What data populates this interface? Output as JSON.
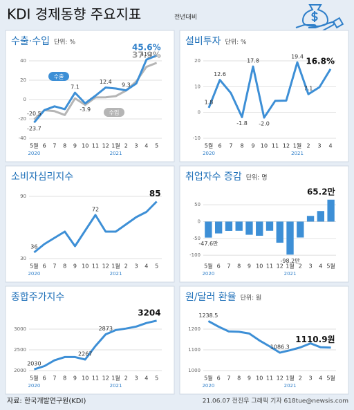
{
  "header": {
    "title": "KDI 경제동향 주요지표",
    "subtitle": "전년대비"
  },
  "chart_data": [
    {
      "type": "line",
      "title": "수출·수입",
      "unit": "단위: %",
      "categories": [
        "5월",
        "6",
        "7",
        "8",
        "9",
        "10",
        "11",
        "12",
        "1월",
        "2",
        "3",
        "4",
        "5"
      ],
      "years": [
        "2020",
        null,
        null,
        null,
        null,
        null,
        null,
        null,
        "2021",
        null,
        null,
        null,
        null
      ],
      "ylim": [
        -40,
        40
      ],
      "yticks": [
        -40,
        -20,
        0,
        20,
        40
      ],
      "grid": true,
      "series": [
        {
          "name": "수출",
          "color": "#3d8fd6",
          "values": [
            -23.7,
            -10.9,
            -7.0,
            -9.9,
            7.1,
            -3.9,
            3.9,
            12.4,
            11.4,
            9.5,
            16.6,
            41.2,
            45.6
          ],
          "value_labels": [
            "-23.7",
            null,
            null,
            null,
            "7.1",
            "-3.9",
            null,
            "12.4",
            null,
            null,
            null,
            "41.2",
            "45.6%"
          ]
        },
        {
          "name": "수입",
          "color": "#b5b5b5",
          "values": [
            -20.5,
            -11.0,
            -12.0,
            -15.9,
            1.2,
            -5.6,
            2.2,
            2.3,
            3.6,
            9.3,
            18.8,
            33.8,
            37.9
          ],
          "value_labels": [
            "-20.5",
            null,
            null,
            null,
            null,
            null,
            null,
            null,
            null,
            "9.3",
            null,
            null,
            "37.9%"
          ]
        }
      ]
    },
    {
      "type": "line",
      "title": "설비투자",
      "unit": "단위: %",
      "categories": [
        "5월",
        "6",
        "7",
        "8",
        "9",
        "10",
        "11",
        "12",
        "1월",
        "2",
        "3",
        "4"
      ],
      "years": [
        "2020",
        null,
        null,
        null,
        null,
        null,
        null,
        null,
        "2021",
        null,
        null,
        null
      ],
      "ylim": [
        -10,
        20
      ],
      "yticks": [
        -10,
        0,
        10,
        20
      ],
      "grid": true,
      "color": "#3d8fd6",
      "values": [
        1.8,
        12.6,
        7.5,
        -1.8,
        17.8,
        -2.0,
        4.5,
        4.6,
        19.4,
        7.1,
        9.8,
        16.8
      ],
      "value_labels": [
        "1.8",
        "12.6",
        null,
        "-1.8",
        "17.8",
        "-2.0",
        null,
        null,
        "19.4",
        "7.1",
        null,
        "16.8%"
      ]
    },
    {
      "type": "line",
      "title": "소비자심리지수",
      "categories": [
        "5월",
        "6",
        "7",
        "8",
        "9",
        "10",
        "11",
        "12",
        "1월",
        "2",
        "3",
        "4",
        "5"
      ],
      "years": [
        "2020",
        null,
        null,
        null,
        null,
        null,
        null,
        null,
        "2021",
        null,
        null,
        null,
        null
      ],
      "ylim": [
        30,
        90
      ],
      "yticks": [
        30,
        90
      ],
      "grid": true,
      "color": "#3d8fd6",
      "values": [
        36,
        44,
        50,
        56,
        42,
        57,
        72,
        56,
        56,
        63,
        70,
        75,
        85
      ],
      "value_labels": [
        "36",
        null,
        null,
        null,
        null,
        null,
        "72",
        null,
        null,
        null,
        null,
        null,
        "85"
      ]
    },
    {
      "type": "bar",
      "title": "취업자수 증감",
      "unit": "단위: 명",
      "categories": [
        "5월",
        "6",
        "7",
        "8",
        "9",
        "10",
        "11",
        "12",
        "1월",
        "2",
        "3",
        "4",
        "5월"
      ],
      "years": [
        "2020",
        null,
        null,
        null,
        null,
        null,
        null,
        null,
        "2021",
        null,
        null,
        null,
        null
      ],
      "ylim": [
        -110,
        75
      ],
      "yticks": [
        -100,
        -50,
        0,
        50
      ],
      "grid": true,
      "color": "#3d8fd6",
      "values": [
        -47.6,
        -35.2,
        -27.7,
        -27.4,
        -39.2,
        -42.1,
        -27.3,
        -62.8,
        -98.2,
        -47.3,
        16.9,
        31.4,
        65.2
      ],
      "value_labels": [
        "-47.6만",
        null,
        null,
        null,
        null,
        null,
        null,
        null,
        "-98.2만",
        null,
        null,
        null,
        "65.2만"
      ]
    },
    {
      "type": "line",
      "title": "종합주가지수",
      "categories": [
        "5월",
        "6",
        "7",
        "8",
        "9",
        "10",
        "11",
        "12",
        "1월",
        "2",
        "3",
        "4",
        "5"
      ],
      "years": [
        "2020",
        null,
        null,
        null,
        null,
        null,
        null,
        null,
        "2021",
        null,
        null,
        null,
        null
      ],
      "ylim": [
        2000,
        3300
      ],
      "yticks": [
        2000,
        2500,
        3000
      ],
      "grid": true,
      "color": "#3d8fd6",
      "values": [
        2030,
        2108,
        2249,
        2326,
        2327,
        2267,
        2591,
        2873,
        2976,
        3013,
        3061,
        3147,
        3204
      ],
      "value_labels": [
        "2030",
        null,
        null,
        null,
        null,
        "2267",
        null,
        "2873",
        null,
        null,
        null,
        null,
        "3204"
      ]
    },
    {
      "type": "line",
      "title": "원/달러 환율",
      "unit": "단위: 원",
      "categories": [
        "5월",
        "6",
        "7",
        "8",
        "9",
        "10",
        "11",
        "12",
        "1월",
        "2",
        "3",
        "4",
        "5월"
      ],
      "years": [
        "2020",
        null,
        null,
        null,
        null,
        null,
        null,
        null,
        "2021",
        null,
        null,
        null,
        null
      ],
      "ylim": [
        1000,
        1260
      ],
      "yticks": [
        1000,
        1100,
        1200
      ],
      "grid": true,
      "color": "#3d8fd6",
      "values": [
        1238.5,
        1211.7,
        1188.5,
        1187.1,
        1178.8,
        1145.2,
        1116.7,
        1086.3,
        1098.1,
        1111.8,
        1131.2,
        1112.2,
        1110.9
      ],
      "value_labels": [
        "1238.5",
        null,
        null,
        null,
        null,
        null,
        null,
        "1086.3",
        null,
        null,
        null,
        null,
        "1110.9원"
      ]
    }
  ],
  "footer": {
    "source": "자료: 한국개발연구원(KDI)",
    "credit": "21.06.07 전진우 그래픽 기자 618tue@newsis.com"
  }
}
